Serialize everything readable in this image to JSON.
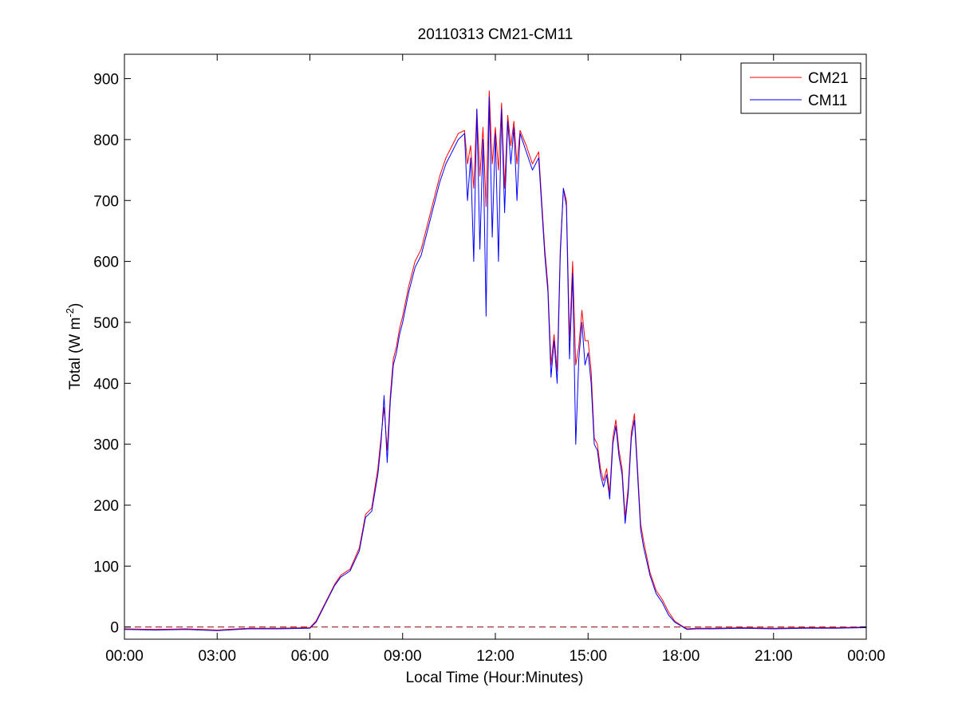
{
  "chart_data": {
    "type": "line",
    "title": "20110313 CM21-CM11",
    "xlabel": "Local Time (Hour:Minutes)",
    "ylabel": {
      "main": "Total (W m",
      "sup": "-2",
      "close": ")"
    },
    "xlim": [
      0,
      24
    ],
    "ylim": [
      -20,
      940
    ],
    "x_ticks": [
      0,
      3,
      6,
      9,
      12,
      15,
      18,
      21,
      24
    ],
    "x_tick_labels": [
      "00:00",
      "03:00",
      "06:00",
      "09:00",
      "12:00",
      "15:00",
      "18:00",
      "21:00",
      "00:00"
    ],
    "y_ticks": [
      0,
      100,
      200,
      300,
      400,
      500,
      600,
      700,
      800,
      900
    ],
    "y_tick_labels": [
      "0",
      "100",
      "200",
      "300",
      "400",
      "500",
      "600",
      "700",
      "800",
      "900"
    ],
    "grid": false,
    "legend_position": "top-right",
    "reference_line": {
      "y": 0,
      "style": "dashed",
      "color": "#8b0000"
    },
    "series": [
      {
        "name": "CM21",
        "color": "#ff0000",
        "x": [
          0,
          1,
          2,
          3,
          4,
          5,
          6,
          6.2,
          6.5,
          6.8,
          7.0,
          7.3,
          7.6,
          7.8,
          8.0,
          8.2,
          8.3,
          8.4,
          8.5,
          8.6,
          8.7,
          8.8,
          8.9,
          9.0,
          9.2,
          9.4,
          9.6,
          9.8,
          10.0,
          10.2,
          10.4,
          10.6,
          10.8,
          11.0,
          11.1,
          11.2,
          11.3,
          11.4,
          11.5,
          11.6,
          11.7,
          11.8,
          11.9,
          12.0,
          12.1,
          12.2,
          12.3,
          12.4,
          12.5,
          12.6,
          12.7,
          12.8,
          13.0,
          13.2,
          13.4,
          13.5,
          13.6,
          13.7,
          13.8,
          13.9,
          14.0,
          14.1,
          14.2,
          14.3,
          14.4,
          14.5,
          14.6,
          14.7,
          14.8,
          14.9,
          15.0,
          15.1,
          15.2,
          15.3,
          15.4,
          15.5,
          15.6,
          15.7,
          15.8,
          15.9,
          16.0,
          16.1,
          16.2,
          16.3,
          16.4,
          16.5,
          16.6,
          16.7,
          16.8,
          17.0,
          17.2,
          17.4,
          17.6,
          17.8,
          18.0,
          18.2,
          18.5,
          19,
          20,
          21,
          22,
          23,
          24
        ],
        "values": [
          -3,
          -4,
          -3,
          -5,
          -2,
          -2,
          -1,
          10,
          40,
          70,
          85,
          95,
          130,
          185,
          195,
          260,
          310,
          360,
          290,
          380,
          440,
          460,
          490,
          510,
          560,
          600,
          620,
          660,
          700,
          740,
          770,
          790,
          810,
          815,
          760,
          790,
          720,
          850,
          740,
          820,
          690,
          880,
          760,
          820,
          750,
          860,
          720,
          840,
          790,
          830,
          760,
          815,
          790,
          760,
          780,
          700,
          620,
          560,
          430,
          480,
          420,
          620,
          720,
          700,
          470,
          600,
          430,
          460,
          520,
          470,
          470,
          420,
          310,
          300,
          260,
          240,
          260,
          220,
          310,
          340,
          290,
          260,
          180,
          230,
          320,
          350,
          260,
          170,
          140,
          90,
          60,
          45,
          25,
          10,
          3,
          -3,
          -2,
          -2,
          -1,
          -2,
          -1,
          -1,
          0
        ]
      },
      {
        "name": "CM11",
        "color": "#0000ff",
        "x": [
          0,
          1,
          2,
          3,
          4,
          5,
          6,
          6.2,
          6.5,
          6.8,
          7.0,
          7.3,
          7.6,
          7.8,
          8.0,
          8.2,
          8.3,
          8.4,
          8.5,
          8.6,
          8.7,
          8.8,
          8.9,
          9.0,
          9.2,
          9.4,
          9.6,
          9.8,
          10.0,
          10.2,
          10.4,
          10.6,
          10.8,
          11.0,
          11.1,
          11.2,
          11.3,
          11.4,
          11.5,
          11.6,
          11.7,
          11.8,
          11.9,
          12.0,
          12.1,
          12.2,
          12.3,
          12.4,
          12.5,
          12.6,
          12.7,
          12.8,
          13.0,
          13.2,
          13.4,
          13.5,
          13.6,
          13.7,
          13.8,
          13.9,
          14.0,
          14.1,
          14.2,
          14.3,
          14.4,
          14.5,
          14.6,
          14.7,
          14.8,
          14.9,
          15.0,
          15.1,
          15.2,
          15.3,
          15.4,
          15.5,
          15.6,
          15.7,
          15.8,
          15.9,
          16.0,
          16.1,
          16.2,
          16.3,
          16.4,
          16.5,
          16.6,
          16.7,
          16.8,
          17.0,
          17.2,
          17.4,
          17.6,
          17.8,
          18.0,
          18.2,
          18.5,
          19,
          20,
          21,
          22,
          23,
          24
        ],
        "values": [
          -4,
          -5,
          -4,
          -6,
          -3,
          -3,
          -2,
          8,
          38,
          68,
          82,
          92,
          125,
          180,
          190,
          250,
          300,
          380,
          270,
          370,
          430,
          450,
          480,
          500,
          550,
          590,
          610,
          650,
          690,
          730,
          760,
          780,
          800,
          810,
          700,
          770,
          600,
          850,
          620,
          800,
          510,
          870,
          640,
          810,
          600,
          850,
          680,
          830,
          760,
          820,
          700,
          810,
          780,
          750,
          770,
          690,
          610,
          550,
          410,
          470,
          400,
          610,
          720,
          690,
          440,
          580,
          300,
          440,
          500,
          430,
          450,
          400,
          300,
          290,
          250,
          230,
          250,
          210,
          300,
          330,
          280,
          250,
          170,
          220,
          310,
          340,
          250,
          160,
          130,
          85,
          55,
          40,
          20,
          8,
          2,
          -4,
          -3,
          -3,
          -2,
          -3,
          -2,
          -2,
          -1
        ]
      }
    ]
  }
}
